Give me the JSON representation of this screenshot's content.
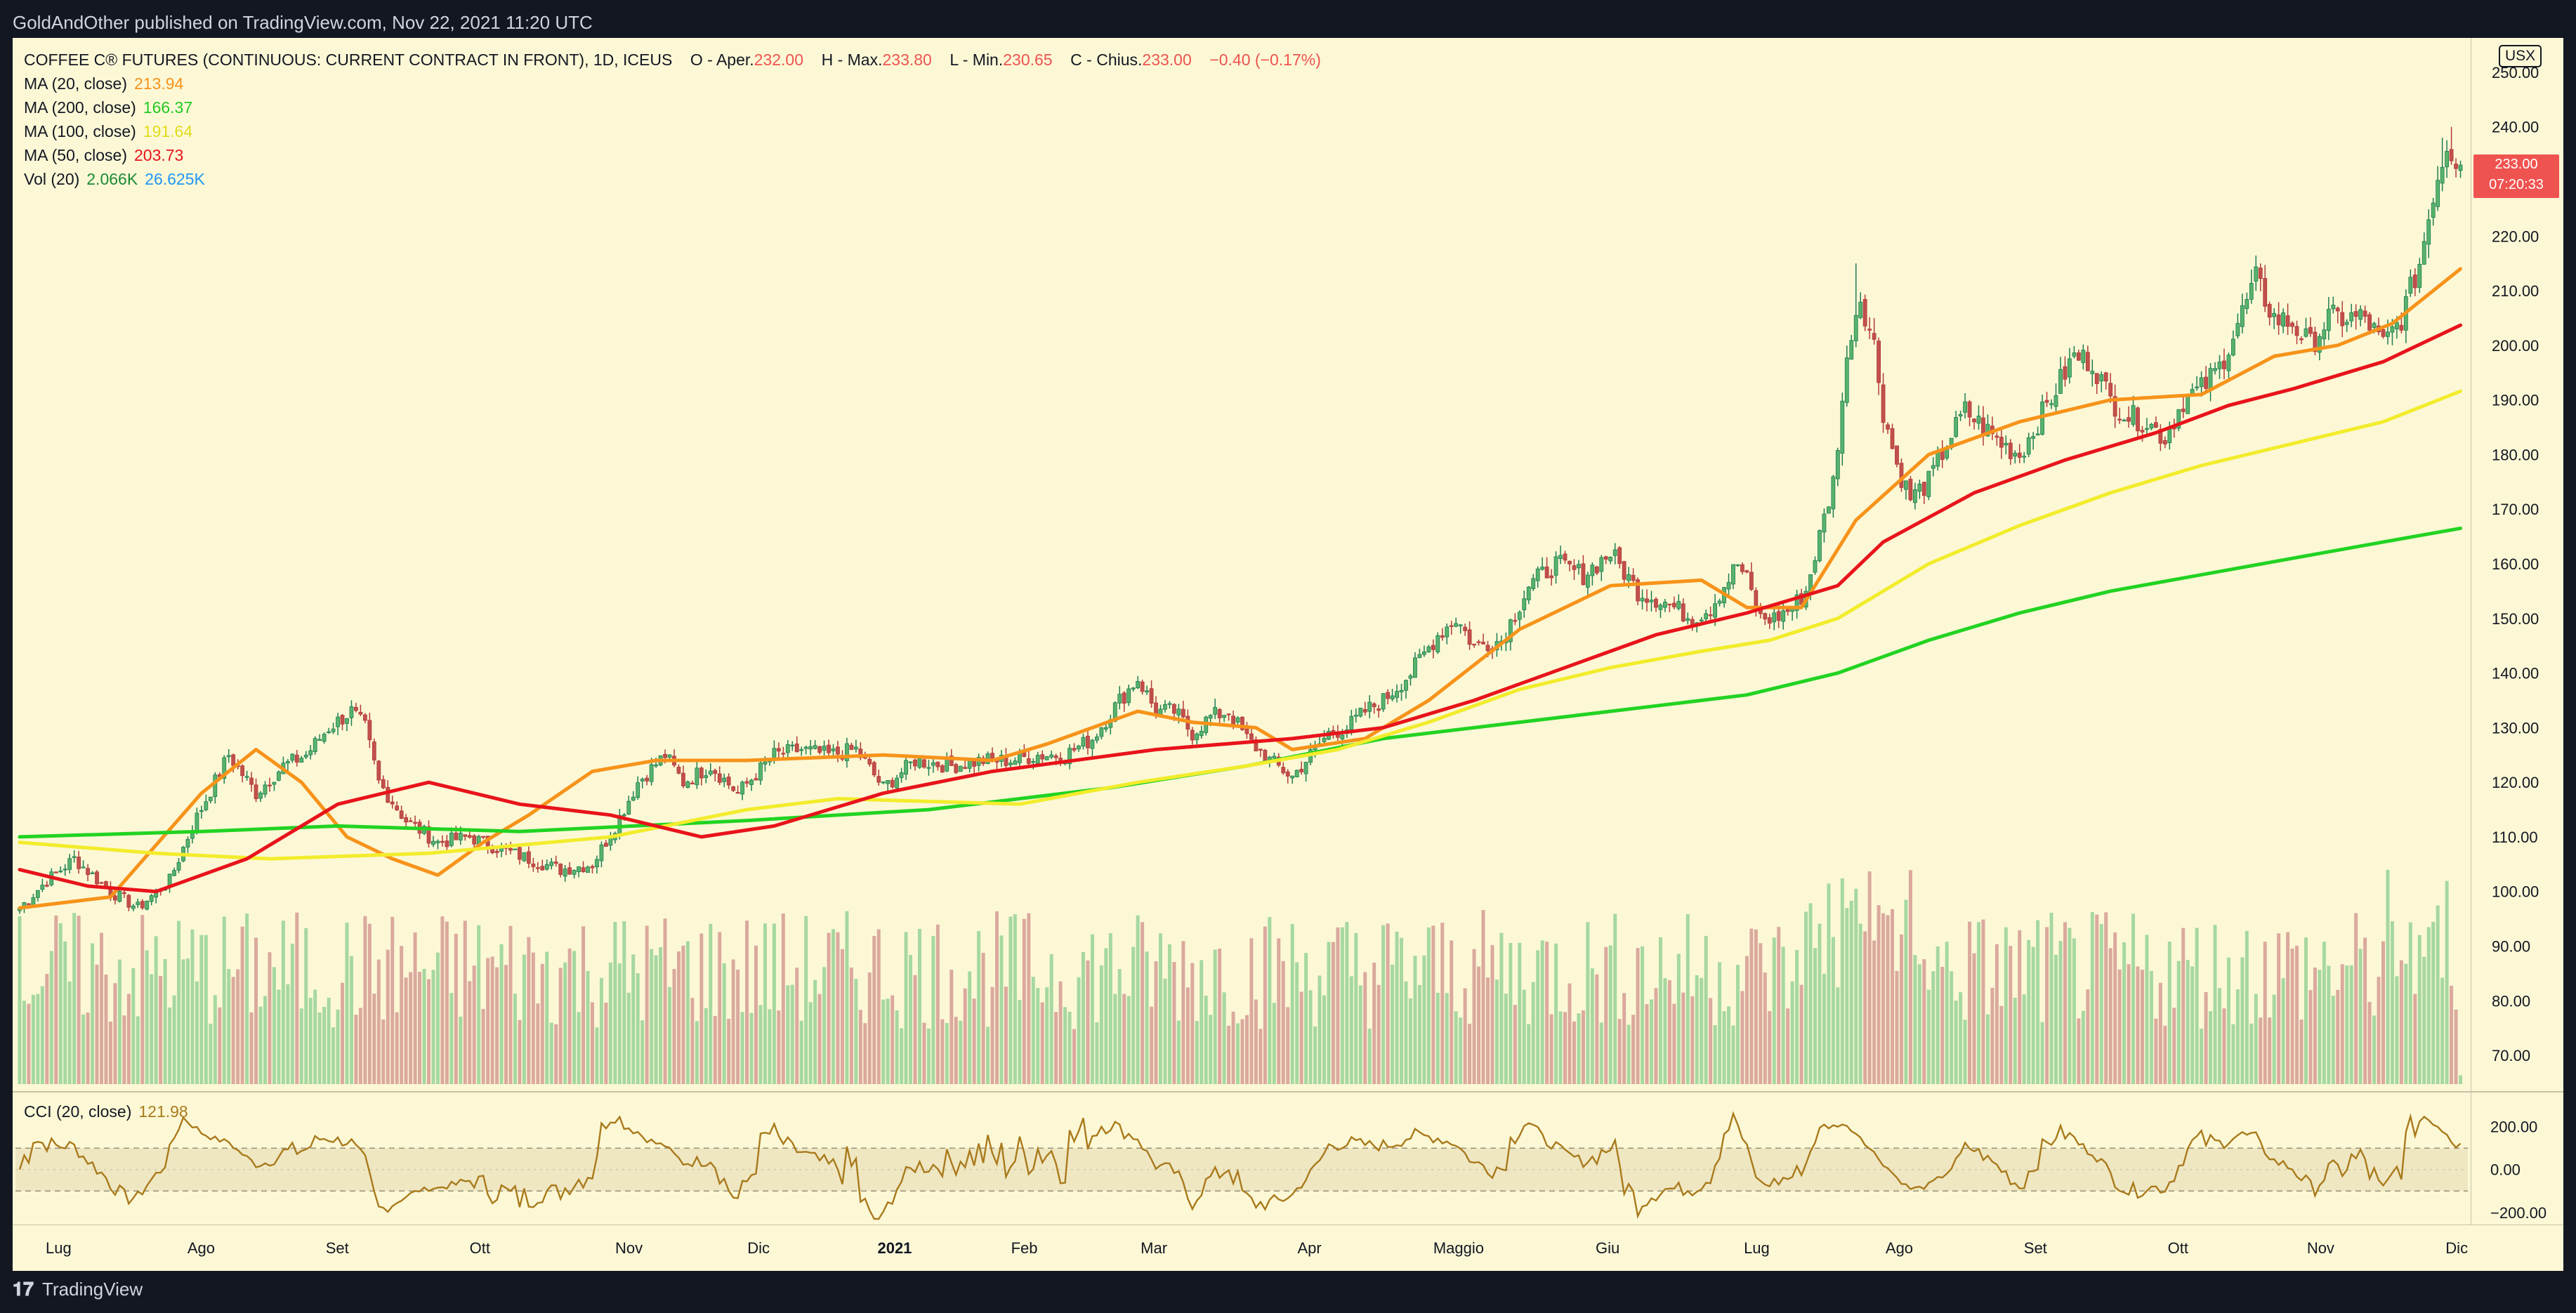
{
  "header": {
    "publisher": "GoldAndOther published on TradingView.com, Nov 22, 2021 11:20 UTC"
  },
  "legend": {
    "symbol": "COFFEE C® FUTURES (CONTINUOUS: CURRENT CONTRACT IN FRONT), 1D, ICEUS",
    "o_label": "O - Aper.",
    "o_value": "232.00",
    "h_label": "H - Max.",
    "h_value": "233.80",
    "l_label": "L - Min.",
    "l_value": "230.65",
    "c_label": "C - Chius.",
    "c_value": "233.00",
    "change": "−0.40 (−0.17%)",
    "indicators": [
      {
        "label": "MA (20, close)",
        "value": "213.94",
        "color": "#f7931a"
      },
      {
        "label": "MA (200, close)",
        "value": "166.37",
        "color": "#22d322"
      },
      {
        "label": "MA (100, close)",
        "value": "191.64",
        "color": "#f2ec2c"
      },
      {
        "label": "MA (50, close)",
        "value": "203.73",
        "color": "#e8141b"
      },
      {
        "label": "Vol (20)",
        "value": "2.066K",
        "value2": "26.625K",
        "color": "#1b8a35",
        "color2": "#2196f3"
      }
    ]
  },
  "cci": {
    "label": "CCI (20, close)",
    "value": "121.98",
    "color": "#a97a1c",
    "ticks": [
      "200.00",
      "0.00",
      "−200.00"
    ]
  },
  "price_axis": {
    "currency": "USX",
    "last_price": "233.00",
    "countdown": "07:20:33"
  },
  "footer": {
    "brand": "TradingView"
  },
  "chart_data": {
    "type": "candlestick",
    "title": "COFFEE C® FUTURES (CONTINUOUS: CURRENT CONTRACT IN FRONT), 1D, ICEUS",
    "ylim": [
      65,
      255
    ],
    "yticks": [
      250,
      240,
      230,
      220,
      210,
      200,
      190,
      180,
      170,
      160,
      150,
      140,
      130,
      120,
      110,
      100,
      90,
      80,
      70
    ],
    "x_ticks": [
      "Lug",
      "Ago",
      "Set",
      "Ott",
      "Nov",
      "Dic",
      "2021",
      "Feb",
      "Mar",
      "Apr",
      "Maggio",
      "Giu",
      "Lug",
      "Ago",
      "Set",
      "Ott",
      "Nov",
      "Dic"
    ],
    "x_tick_bold": [
      "2021"
    ],
    "close_anchors": [
      [
        0,
        97
      ],
      [
        6,
        102
      ],
      [
        12,
        106
      ],
      [
        20,
        100
      ],
      [
        26,
        97
      ],
      [
        33,
        102
      ],
      [
        38,
        112
      ],
      [
        46,
        125
      ],
      [
        52,
        118
      ],
      [
        58,
        123
      ],
      [
        63,
        125
      ],
      [
        68,
        130
      ],
      [
        73,
        133
      ],
      [
        76,
        130
      ],
      [
        79,
        120
      ],
      [
        85,
        113
      ],
      [
        92,
        109
      ],
      [
        99,
        110
      ],
      [
        105,
        108
      ],
      [
        112,
        106
      ],
      [
        119,
        104
      ],
      [
        126,
        105
      ],
      [
        131,
        112
      ],
      [
        136,
        120
      ],
      [
        142,
        125
      ],
      [
        146,
        120
      ],
      [
        152,
        123
      ],
      [
        158,
        118
      ],
      [
        166,
        125
      ],
      [
        172,
        126
      ],
      [
        178,
        125
      ],
      [
        184,
        126
      ],
      [
        190,
        119
      ],
      [
        197,
        124
      ],
      [
        205,
        123
      ],
      [
        212,
        124
      ],
      [
        218,
        124
      ],
      [
        224,
        125
      ],
      [
        230,
        125
      ],
      [
        236,
        128
      ],
      [
        242,
        135
      ],
      [
        246,
        139
      ],
      [
        250,
        133
      ],
      [
        254,
        133
      ],
      [
        258,
        129
      ],
      [
        262,
        132
      ],
      [
        266,
        133
      ],
      [
        270,
        128
      ],
      [
        275,
        124
      ],
      [
        280,
        121
      ],
      [
        284,
        125
      ],
      [
        288,
        129
      ],
      [
        292,
        130
      ],
      [
        296,
        133
      ],
      [
        300,
        135
      ],
      [
        306,
        140
      ],
      [
        312,
        147
      ],
      [
        316,
        150
      ],
      [
        320,
        145
      ],
      [
        326,
        146
      ],
      [
        332,
        156
      ],
      [
        338,
        160
      ],
      [
        344,
        158
      ],
      [
        350,
        162
      ],
      [
        356,
        155
      ],
      [
        362,
        153
      ],
      [
        368,
        150
      ],
      [
        372,
        152
      ],
      [
        378,
        160
      ],
      [
        380,
        157
      ],
      [
        383,
        150
      ],
      [
        386,
        150
      ],
      [
        390,
        152
      ],
      [
        393,
        155
      ],
      [
        396,
        165
      ],
      [
        399,
        175
      ],
      [
        401,
        190
      ],
      [
        403,
        203
      ],
      [
        405,
        209
      ],
      [
        408,
        200
      ],
      [
        410,
        188
      ],
      [
        413,
        178
      ],
      [
        416,
        172
      ],
      [
        420,
        175
      ],
      [
        424,
        182
      ],
      [
        428,
        188
      ],
      [
        432,
        185
      ],
      [
        436,
        182
      ],
      [
        440,
        180
      ],
      [
        444,
        186
      ],
      [
        448,
        192
      ],
      [
        452,
        198
      ],
      [
        456,
        197
      ],
      [
        460,
        190
      ],
      [
        464,
        187
      ],
      [
        468,
        186
      ],
      [
        472,
        183
      ],
      [
        476,
        190
      ],
      [
        480,
        192
      ],
      [
        484,
        196
      ],
      [
        488,
        204
      ],
      [
        492,
        212
      ],
      [
        496,
        205
      ],
      [
        500,
        204
      ],
      [
        504,
        200
      ],
      [
        508,
        205
      ],
      [
        512,
        205
      ],
      [
        516,
        205
      ],
      [
        520,
        200
      ],
      [
        524,
        205
      ],
      [
        528,
        215
      ],
      [
        531,
        228
      ],
      [
        534,
        237
      ],
      [
        537,
        233
      ]
    ],
    "moving_averages": [
      {
        "name": "MA (20, close)",
        "color": "#f7931a",
        "points": [
          [
            0,
            97
          ],
          [
            20,
            99
          ],
          [
            40,
            118
          ],
          [
            52,
            126
          ],
          [
            62,
            120
          ],
          [
            72,
            110
          ],
          [
            82,
            106
          ],
          [
            92,
            103
          ],
          [
            102,
            109
          ],
          [
            112,
            114
          ],
          [
            126,
            122
          ],
          [
            140,
            124
          ],
          [
            160,
            124
          ],
          [
            190,
            125
          ],
          [
            214,
            124
          ],
          [
            226,
            127
          ],
          [
            246,
            133
          ],
          [
            258,
            131
          ],
          [
            272,
            130
          ],
          [
            280,
            126
          ],
          [
            296,
            128
          ],
          [
            310,
            135
          ],
          [
            330,
            148
          ],
          [
            350,
            156
          ],
          [
            370,
            157
          ],
          [
            380,
            152
          ],
          [
            392,
            152
          ],
          [
            404,
            168
          ],
          [
            420,
            180
          ],
          [
            440,
            186
          ],
          [
            460,
            190
          ],
          [
            480,
            191
          ],
          [
            496,
            198
          ],
          [
            510,
            200
          ],
          [
            522,
            204
          ],
          [
            537,
            214
          ]
        ]
      },
      {
        "name": "MA (200, close)",
        "color": "#22d322",
        "points": [
          [
            0,
            110
          ],
          [
            40,
            111
          ],
          [
            70,
            112
          ],
          [
            110,
            111
          ],
          [
            160,
            113
          ],
          [
            200,
            115
          ],
          [
            240,
            119
          ],
          [
            270,
            123
          ],
          [
            300,
            128
          ],
          [
            330,
            131
          ],
          [
            360,
            134
          ],
          [
            380,
            136
          ],
          [
            400,
            140
          ],
          [
            420,
            146
          ],
          [
            440,
            151
          ],
          [
            460,
            155
          ],
          [
            480,
            158
          ],
          [
            500,
            161
          ],
          [
            520,
            164
          ],
          [
            537,
            166.5
          ]
        ]
      },
      {
        "name": "MA (100, close)",
        "color": "#f2ec2c",
        "points": [
          [
            0,
            109
          ],
          [
            30,
            107
          ],
          [
            55,
            106
          ],
          [
            90,
            107
          ],
          [
            130,
            110
          ],
          [
            160,
            115
          ],
          [
            180,
            117
          ],
          [
            220,
            116
          ],
          [
            246,
            120
          ],
          [
            270,
            123
          ],
          [
            290,
            126
          ],
          [
            310,
            131
          ],
          [
            330,
            137
          ],
          [
            350,
            141
          ],
          [
            370,
            144
          ],
          [
            385,
            146
          ],
          [
            400,
            150
          ],
          [
            420,
            160
          ],
          [
            440,
            167
          ],
          [
            460,
            173
          ],
          [
            480,
            178
          ],
          [
            500,
            182
          ],
          [
            520,
            186
          ],
          [
            537,
            191.6
          ]
        ]
      },
      {
        "name": "MA (50, close)",
        "color": "#e8141b",
        "points": [
          [
            0,
            104
          ],
          [
            15,
            101
          ],
          [
            30,
            100
          ],
          [
            50,
            106
          ],
          [
            70,
            116
          ],
          [
            90,
            120
          ],
          [
            110,
            116
          ],
          [
            130,
            114
          ],
          [
            150,
            110
          ],
          [
            166,
            112
          ],
          [
            190,
            118
          ],
          [
            214,
            122
          ],
          [
            250,
            126
          ],
          [
            280,
            128
          ],
          [
            300,
            130
          ],
          [
            320,
            135
          ],
          [
            340,
            141
          ],
          [
            360,
            147
          ],
          [
            380,
            151
          ],
          [
            400,
            156
          ],
          [
            410,
            164
          ],
          [
            430,
            173
          ],
          [
            450,
            179
          ],
          [
            470,
            184
          ],
          [
            486,
            189
          ],
          [
            500,
            192
          ],
          [
            520,
            197
          ],
          [
            537,
            203.7
          ]
        ]
      }
    ],
    "volume_scale": {
      "max_label": "2.066K",
      "avg_label": "26.625K"
    },
    "cci_ylim": [
      -230,
      320
    ],
    "cci_bands": [
      100,
      -100
    ]
  }
}
